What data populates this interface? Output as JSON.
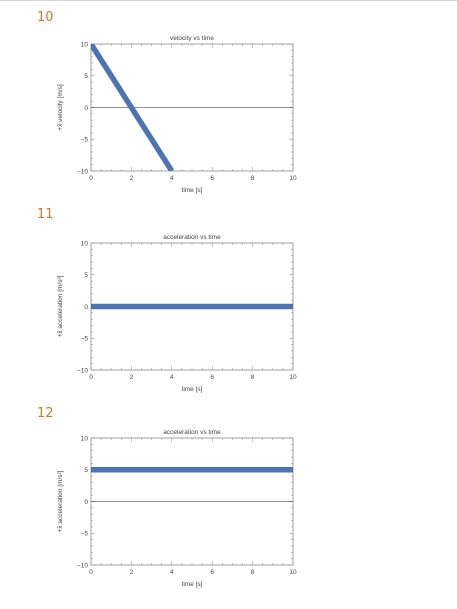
{
  "questions": [
    {
      "number": "10"
    },
    {
      "number": "11"
    },
    {
      "number": "12"
    }
  ],
  "colors": {
    "series": "#4d74b2",
    "frame": "#8c8c8c",
    "zero_line": "#222222",
    "question_number": "#c97a2a"
  },
  "chart_data": [
    {
      "type": "line",
      "title": "velocity vs time",
      "xlabel": "time [s]",
      "ylabel": "+x̂ velocity [m/s]",
      "xlim": [
        0,
        10
      ],
      "ylim": [
        -10,
        10
      ],
      "x_ticks": [
        "0",
        "2",
        "4",
        "6",
        "8",
        "10"
      ],
      "y_ticks": [
        "10",
        "5",
        "0",
        "−5",
        "−10"
      ],
      "series": [
        {
          "x": [
            0,
            4
          ],
          "y": [
            10,
            -10
          ]
        }
      ]
    },
    {
      "type": "line",
      "title": "acceleration vs time",
      "xlabel": "time [s]",
      "ylabel": "+x̂ acceleration [m/s²]",
      "xlim": [
        0,
        10
      ],
      "ylim": [
        -10,
        10
      ],
      "x_ticks": [
        "0",
        "2",
        "4",
        "6",
        "8",
        "10"
      ],
      "y_ticks": [
        "10",
        "5",
        "0",
        "−5",
        "−10"
      ],
      "series": [
        {
          "x": [
            0,
            10
          ],
          "y": [
            0,
            0
          ]
        }
      ]
    },
    {
      "type": "line",
      "title": "acceleration vs time",
      "xlabel": "time [s]",
      "ylabel": "+x̂ acceleration [m/s²]",
      "xlim": [
        0,
        10
      ],
      "ylim": [
        -10,
        10
      ],
      "x_ticks": [
        "0",
        "2",
        "4",
        "6",
        "8",
        "10"
      ],
      "y_ticks": [
        "10",
        "5",
        "0",
        "−5",
        "−10"
      ],
      "series": [
        {
          "x": [
            0,
            10
          ],
          "y": [
            5,
            5
          ]
        }
      ]
    }
  ]
}
